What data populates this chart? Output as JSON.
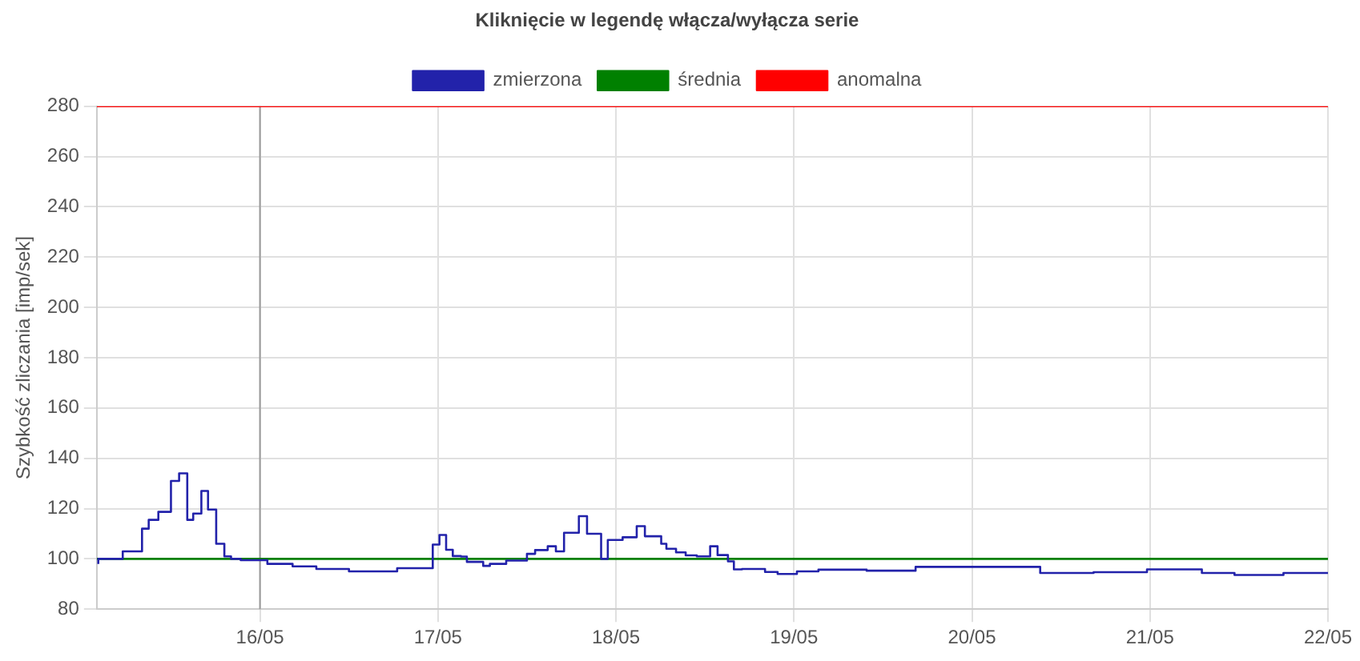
{
  "chart_data": {
    "type": "line",
    "title": "Kliknięcie w legendę włącza/wyłącza serie",
    "ylabel": "Szybkość zliczania [imp/sek]",
    "xlim": [
      "--05-15T02:00",
      "--05-22T00:00"
    ],
    "xticks": [
      {
        "value": "--05-16",
        "label": "16/05"
      },
      {
        "value": "--05-17",
        "label": "17/05"
      },
      {
        "value": "--05-18",
        "label": "18/05"
      },
      {
        "value": "--05-19",
        "label": "19/05"
      },
      {
        "value": "--05-20",
        "label": "20/05"
      },
      {
        "value": "--05-21",
        "label": "21/05"
      },
      {
        "value": "--05-22",
        "label": "22/05"
      }
    ],
    "ylim": [
      80,
      280
    ],
    "yticks": [
      80,
      100,
      120,
      140,
      160,
      180,
      200,
      220,
      240,
      260,
      280
    ],
    "grid": true,
    "legend": "top",
    "marker": "none",
    "ref_lines": [
      {
        "axis": "x",
        "value": "--05-16",
        "color": "#999999"
      }
    ],
    "series": [
      {
        "name": "zmierzona",
        "type": "step",
        "color": "#2222aa",
        "x": [
          "--05-15T02:12",
          "--05-15T05:30",
          "--05-15T08:06",
          "--05-15T09:00",
          "--05-15T10:18",
          "--05-15T12:00",
          "--05-15T13:06",
          "--05-15T14:12",
          "--05-15T15:00",
          "--05-15T16:06",
          "--05-15T17:00",
          "--05-15T18:06",
          "--05-15T19:12",
          "--05-15T20:06",
          "--05-15T21:24",
          "--05-16T01:00",
          "--05-16T04:24",
          "--05-16T07:36",
          "--05-16T12:00",
          "--05-16T18:30",
          "--05-16T23:18",
          "--05-17T00:12",
          "--05-17T01:06",
          "--05-17T02:00",
          "--05-17T03:06",
          "--05-17T03:54",
          "--05-17T06:06",
          "--05-17T07:00",
          "--05-17T09:12",
          "--05-17T12:00",
          "--05-17T13:06",
          "--05-17T14:48",
          "--05-17T15:54",
          "--05-17T17:00",
          "--05-17T19:00",
          "--05-17T20:06",
          "--05-17T22:00",
          "--05-17T22:54",
          "--05-18T00:54",
          "--05-18T02:48",
          "--05-18T03:54",
          "--05-18T06:06",
          "--05-18T06:48",
          "--05-18T08:06",
          "--05-18T09:24",
          "--05-18T10:54",
          "--05-18T12:42",
          "--05-18T13:42",
          "--05-18T15:06",
          "--05-18T15:54",
          "--05-18T17:00",
          "--05-18T20:06",
          "--05-18T21:48",
          "--05-19T00:24",
          "--05-19T03:18",
          "--05-19T09:48",
          "--05-19T16:24",
          "--05-19T22:54",
          "--05-20T09:12",
          "--05-20T16:24",
          "--05-20T23:36",
          "--05-21T07:00",
          "--05-21T11:24",
          "--05-21T18:00",
          "--05-22T00:00"
        ],
        "values": [
          98,
          100,
          103,
          112,
          115.5,
          118.7,
          131,
          134,
          115.5,
          118,
          127,
          119.6,
          106,
          101,
          100,
          99.5,
          98,
          97,
          96,
          95,
          96.3,
          105.7,
          109.5,
          103.6,
          101.1,
          100.9,
          98.8,
          97.2,
          98,
          99.3,
          102,
          103.5,
          105,
          103,
          110.4,
          117,
          110,
          100,
          107.5,
          108.6,
          113,
          109,
          106,
          104,
          102.6,
          101.4,
          101,
          105,
          101.5,
          99,
          95.8,
          96,
          94.8,
          94,
          95,
          95.7,
          95.3,
          96.8,
          96.8,
          94.4,
          94.7,
          95.8,
          94.4,
          93.6,
          94.4
        ]
      },
      {
        "name": "średnia",
        "color": "#008000",
        "x": [
          "--05-15T02:00",
          "--05-22T00:00"
        ],
        "values": [
          100,
          100
        ]
      },
      {
        "name": "anomalna",
        "color": "#ff0000",
        "x": [
          "--05-15T02:00",
          "--05-22T00:00"
        ],
        "values": [
          280,
          280
        ]
      }
    ]
  }
}
